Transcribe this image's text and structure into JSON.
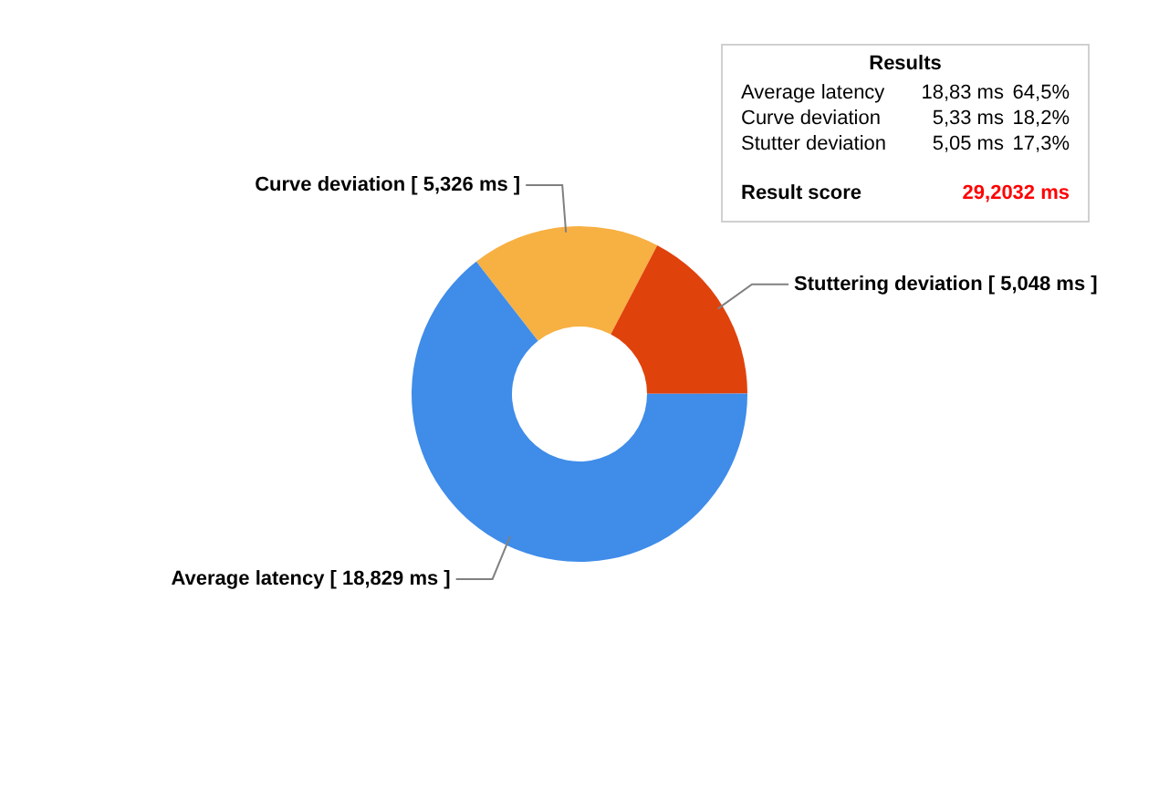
{
  "chart_data": {
    "type": "donut",
    "categories": [
      "Curve deviation [ 5,326 ms ]",
      "Stuttering deviation [ 5,048 ms ]",
      "Average latency [ 18,829 ms ]"
    ],
    "values": [
      18.2,
      17.3,
      64.5
    ],
    "colors": [
      "#f7b042",
      "#e0420c",
      "#3f8ce9"
    ],
    "annotations": [
      "Results",
      "Average latency",
      "18,83 ms",
      "64,5%",
      "Curve deviation",
      "5,33 ms",
      "18,2%",
      "Stutter deviation",
      "5,05 ms",
      "17,3%",
      "Result score",
      "29,2032 ms"
    ]
  }
}
